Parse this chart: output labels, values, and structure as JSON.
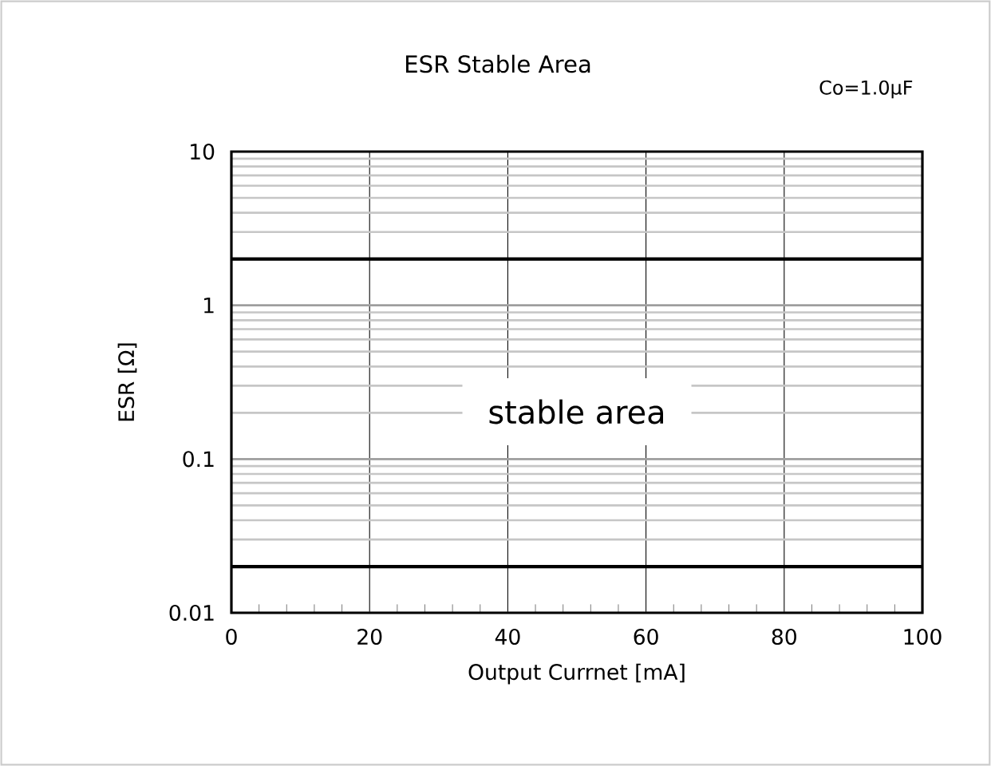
{
  "chart_data": {
    "type": "line",
    "title": "ESR Stable Area",
    "xlabel": "Output Currnet [mA]",
    "ylabel": "ESR [Ω]",
    "annotations": [
      "Co=1.0μF",
      "stable area"
    ],
    "xlim": [
      0,
      100
    ],
    "xticks": [
      0,
      20,
      40,
      60,
      80,
      100
    ],
    "ylim": [
      0.01,
      10
    ],
    "yticks": [
      0.01,
      0.1,
      1,
      10
    ],
    "log": "y",
    "grid": true,
    "ref_lines": [
      {
        "axis": "y",
        "value": 2,
        "color": "#000000"
      },
      {
        "axis": "y",
        "value": 0.02,
        "color": "#000000"
      }
    ]
  }
}
